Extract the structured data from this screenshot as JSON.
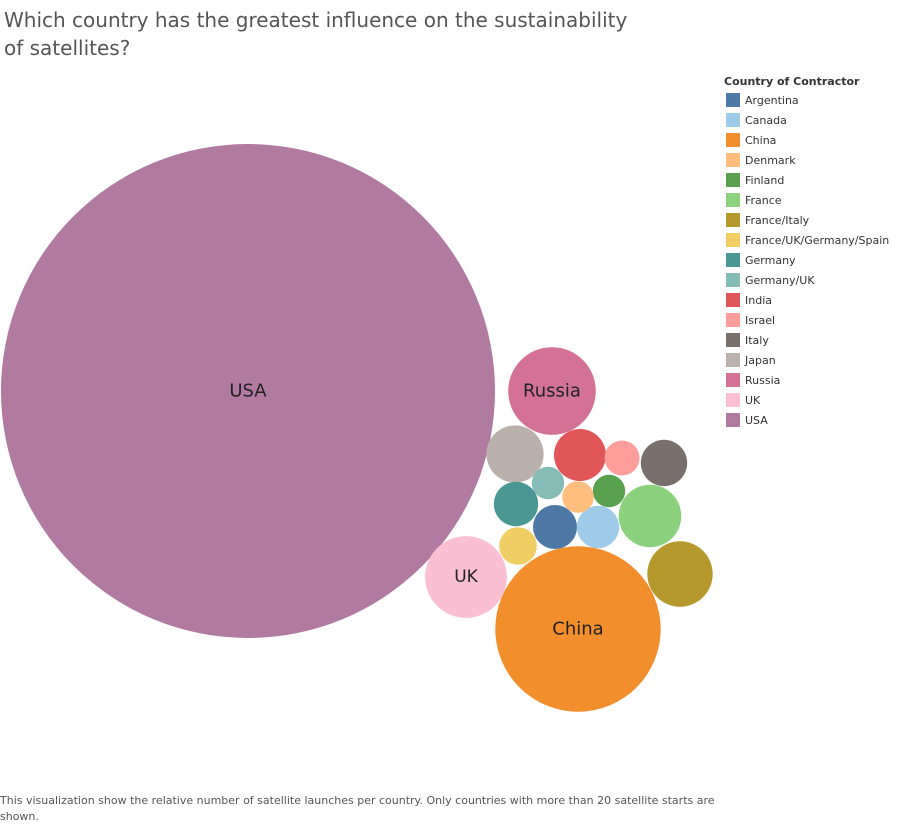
{
  "title": "Which country has the greatest influence on the sustainability of satellites?",
  "caption": "This visualization show the relative number of satellite launches per country. Only countries with more than 20 satellite starts are shown.",
  "legend": {
    "title": "Country of Contractor",
    "items": [
      {
        "label": "Argentina",
        "color": "#4e79a7"
      },
      {
        "label": "Canada",
        "color": "#a0cbe8"
      },
      {
        "label": "China",
        "color": "#f28e2b"
      },
      {
        "label": "Denmark",
        "color": "#ffbe7d"
      },
      {
        "label": "Finland",
        "color": "#59a14f"
      },
      {
        "label": "France",
        "color": "#8cd17d"
      },
      {
        "label": "France/Italy",
        "color": "#b6992d"
      },
      {
        "label": "France/UK/Germany/Spain",
        "color": "#f1ce63"
      },
      {
        "label": "Germany",
        "color": "#499894"
      },
      {
        "label": "Germany/UK",
        "color": "#86bcb6"
      },
      {
        "label": "India",
        "color": "#e15759"
      },
      {
        "label": "Israel",
        "color": "#ff9d9a"
      },
      {
        "label": "Italy",
        "color": "#79706e"
      },
      {
        "label": "Japan",
        "color": "#bab0ac"
      },
      {
        "label": "Russia",
        "color": "#d37295"
      },
      {
        "label": "UK",
        "color": "#fabfd2"
      },
      {
        "label": "USA",
        "color": "#b07aa1"
      }
    ]
  },
  "chart_data": {
    "type": "packed-bubble",
    "title": "Which country has the greatest influence on the sustainability of satellites?",
    "legend_title": "Country of Contractor",
    "legend_position": "top-right",
    "size_measure": "relative number of satellite launches",
    "bubbles": [
      {
        "name": "USA",
        "label": "USA",
        "relative_size": 1.0,
        "color": "#b07aa1"
      },
      {
        "name": "China",
        "label": "China",
        "relative_size": 0.112,
        "color": "#f28e2b"
      },
      {
        "name": "Russia",
        "label": "Russia",
        "relative_size": 0.0315,
        "color": "#d37295"
      },
      {
        "name": "UK",
        "label": "UK",
        "relative_size": 0.0274,
        "color": "#fabfd2"
      },
      {
        "name": "France/Italy",
        "label": "",
        "relative_size": 0.0175,
        "color": "#b6992d"
      },
      {
        "name": "France",
        "label": "",
        "relative_size": 0.0161,
        "color": "#8cd17d"
      },
      {
        "name": "Japan",
        "label": "",
        "relative_size": 0.0134,
        "color": "#bab0ac"
      },
      {
        "name": "India",
        "label": "",
        "relative_size": 0.0111,
        "color": "#e15759"
      },
      {
        "name": "Italy",
        "label": "",
        "relative_size": 0.0088,
        "color": "#79706e"
      },
      {
        "name": "Germany",
        "label": "",
        "relative_size": 0.0081,
        "color": "#499894"
      },
      {
        "name": "Argentina",
        "label": "",
        "relative_size": 0.0079,
        "color": "#4e79a7"
      },
      {
        "name": "Canada",
        "label": "",
        "relative_size": 0.0074,
        "color": "#a0cbe8"
      },
      {
        "name": "France/UK/Germany/Spain",
        "label": "",
        "relative_size": 0.0058,
        "color": "#f1ce63"
      },
      {
        "name": "Israel",
        "label": "",
        "relative_size": 0.005,
        "color": "#ff9d9a"
      },
      {
        "name": "Germany/UK",
        "label": "",
        "relative_size": 0.0043,
        "color": "#86bcb6"
      },
      {
        "name": "Finland",
        "label": "",
        "relative_size": 0.0043,
        "color": "#59a14f"
      },
      {
        "name": "Denmark",
        "label": "",
        "relative_size": 0.0041,
        "color": "#ffbe7d"
      }
    ]
  }
}
